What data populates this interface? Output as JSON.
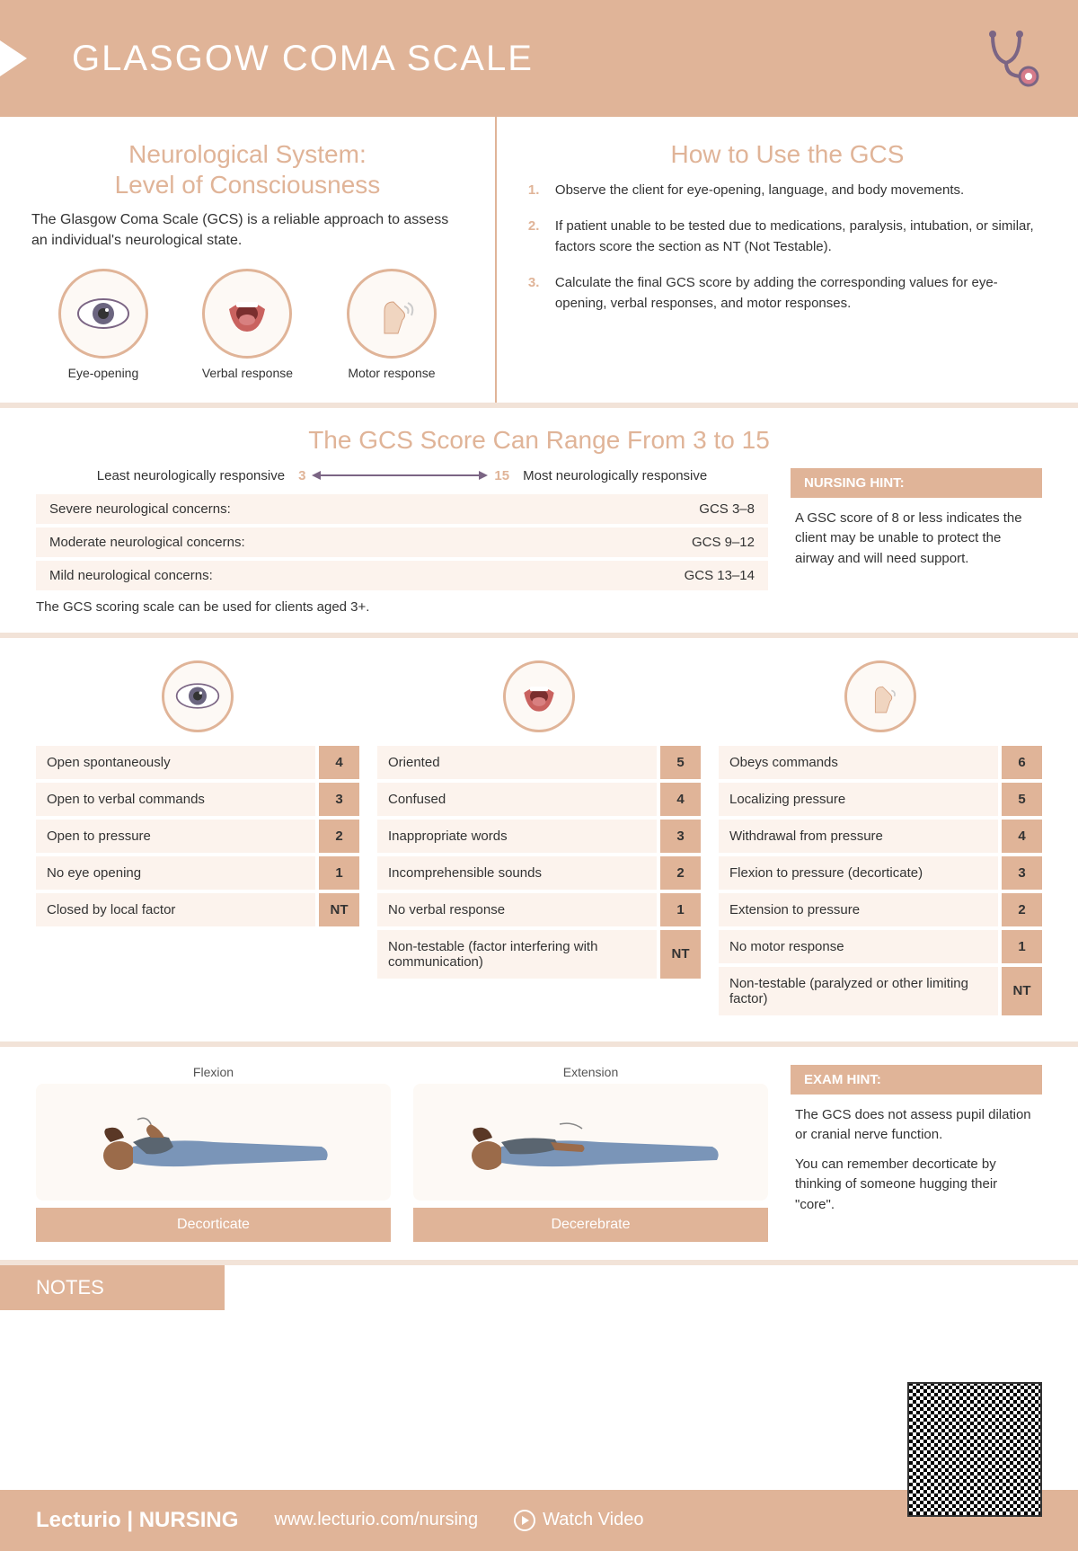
{
  "colors": {
    "accent": "#e0b498",
    "light": "#fcf3ed",
    "divider": "#f2e3d8",
    "text": "#333",
    "arrow": "#7b6584"
  },
  "header": {
    "title": "GLASGOW COMA SCALE"
  },
  "intro": {
    "title": "Neurological System:\nLevel of Consciousness",
    "desc": "The Glasgow Coma Scale (GCS) is a reliable approach to assess an individual's neurological state.",
    "icons": [
      {
        "name": "eye-icon",
        "label": "Eye-opening"
      },
      {
        "name": "mouth-icon",
        "label": "Verbal response"
      },
      {
        "name": "hand-icon",
        "label": "Motor response"
      }
    ]
  },
  "howto": {
    "title": "How to Use the GCS",
    "steps": [
      "Observe the client for eye-opening, language, and body movements.",
      "If patient unable to be tested due to medications, paralysis, intubation, or similar, factors score the section as NT (Not Testable).",
      "Calculate the final GCS score by adding the corresponding values for eye-opening, verbal responses, and motor responses."
    ]
  },
  "range": {
    "title": "The GCS Score Can Range From 3 to 15",
    "least_label": "Least neurologically responsive",
    "most_label": "Most neurologically responsive",
    "min": "3",
    "max": "15",
    "concerns": [
      {
        "label": "Severe neurological concerns:",
        "value": "GCS 3–8"
      },
      {
        "label": "Moderate neurological concerns:",
        "value": "GCS 9–12"
      },
      {
        "label": "Mild neurological concerns:",
        "value": "GCS 13–14"
      }
    ],
    "note": "The GCS scoring scale can be used for clients aged 3+.",
    "hint_title": "NURSING HINT:",
    "hint_body": "A GSC score of 8 or less indicates the client may be unable to protect the airway and will need support."
  },
  "tables": {
    "eye": [
      {
        "label": "Open spontaneously",
        "score": "4"
      },
      {
        "label": "Open to verbal commands",
        "score": "3"
      },
      {
        "label": "Open to pressure",
        "score": "2"
      },
      {
        "label": "No eye opening",
        "score": "1"
      },
      {
        "label": "Closed by local factor",
        "score": "NT"
      }
    ],
    "verbal": [
      {
        "label": "Oriented",
        "score": "5"
      },
      {
        "label": "Confused",
        "score": "4"
      },
      {
        "label": "Inappropriate words",
        "score": "3"
      },
      {
        "label": "Incomprehensible sounds",
        "score": "2"
      },
      {
        "label": "No verbal response",
        "score": "1"
      },
      {
        "label": "Non-testable (factor interfering with communication)",
        "score": "NT"
      }
    ],
    "motor": [
      {
        "label": "Obeys commands",
        "score": "6"
      },
      {
        "label": "Localizing pressure",
        "score": "5"
      },
      {
        "label": "Withdrawal from pressure",
        "score": "4"
      },
      {
        "label": "Flexion to pressure (decorticate)",
        "score": "3"
      },
      {
        "label": "Extension to pressure",
        "score": "2"
      },
      {
        "label": "No motor response",
        "score": "1"
      },
      {
        "label": "Non-testable (paralyzed or other limiting factor)",
        "score": "NT"
      }
    ]
  },
  "postures": {
    "items": [
      {
        "top": "Flexion",
        "caption": "Decorticate"
      },
      {
        "top": "Extension",
        "caption": "Decerebrate"
      }
    ],
    "exam_title": "EXAM HINT:",
    "exam_body1": "The GCS does not assess pupil dilation or cranial nerve function.",
    "exam_body2": "You can remember decorticate by thinking of someone hugging their \"core\"."
  },
  "notes": {
    "title": "NOTES"
  },
  "footer": {
    "brand": "Lecturio | NURSING",
    "url": "www.lecturio.com/nursing",
    "watch": "Watch Video"
  }
}
